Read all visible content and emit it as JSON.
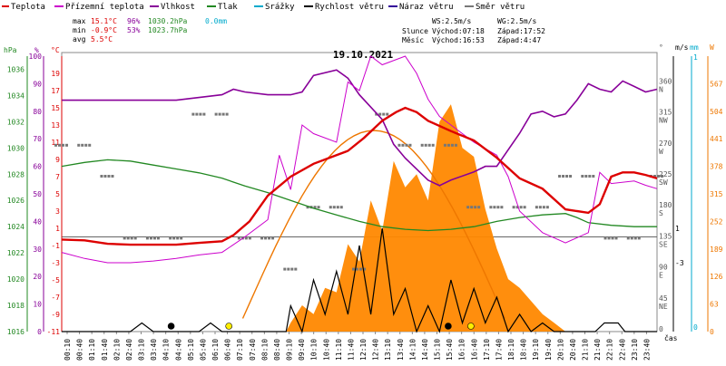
{
  "chart_data": {
    "type": "line",
    "title": "19.10.2021",
    "legend": [
      {
        "label": "Teplota",
        "color": "#dd0000"
      },
      {
        "label": "Přízemní teplota",
        "color": "#cc00cc"
      },
      {
        "label": "Vlhkost",
        "color": "#880099"
      },
      {
        "label": "Tlak",
        "color": "#228822"
      },
      {
        "label": "Srážky",
        "color": "#00aacc"
      },
      {
        "label": "Rychlost větru",
        "color": "#000000"
      },
      {
        "label": "Náraz větru",
        "color": "#330099"
      },
      {
        "label": "Směr větru",
        "color": "#777777"
      }
    ],
    "stats": {
      "max": {
        "label": "max",
        "temp": "15.1°C",
        "hum": "96%",
        "press": "1030.2hPa",
        "rain": "0.0mm"
      },
      "min": {
        "label": "min",
        "temp": "-0.9°C",
        "hum": "53%",
        "press": "1023.7hPa"
      },
      "avg": {
        "label": "avg",
        "temp": "5.5°C"
      }
    },
    "wind_info": {
      "ws": "WS:2.5m/s",
      "wg": "WG:2.5m/s"
    },
    "sun_info": {
      "label": "Slunce",
      "rise": "Východ:07:18",
      "set": "Západ:17:52"
    },
    "moon_info": {
      "label": "Měsíc",
      "rise": "Východ:16:53",
      "set": "Západ:4:47"
    },
    "axis_units": {
      "hpa": "hPa",
      "pct": "%",
      "c": "°C",
      "deg": "°",
      "ms": "m/s",
      "mm": "mm",
      "wm2": "W",
      "time": "čas"
    },
    "x_ticks": [
      "00:10",
      "00:40",
      "01:10",
      "01:40",
      "02:10",
      "02:40",
      "03:10",
      "03:40",
      "04:10",
      "04:40",
      "05:10",
      "05:40",
      "06:10",
      "06:40",
      "07:10",
      "07:40",
      "08:10",
      "08:40",
      "09:10",
      "09:40",
      "10:10",
      "10:40",
      "11:10",
      "11:40",
      "12:10",
      "12:40",
      "13:10",
      "13:40",
      "14:10",
      "14:40",
      "15:10",
      "15:40",
      "16:10",
      "16:40",
      "17:10",
      "17:40",
      "18:10",
      "18:40",
      "19:10",
      "19:40",
      "20:10",
      "20:40",
      "21:10",
      "21:40",
      "22:10",
      "22:40",
      "23:10",
      "23:40"
    ],
    "y_ticks": {
      "pressure_hpa": [
        "1036",
        "1034",
        "1032",
        "1030",
        "1028",
        "1026",
        "1024",
        "1022",
        "1020",
        "1018",
        "1016"
      ],
      "humidity_pct": [
        "100",
        "90",
        "80",
        "70",
        "60",
        "50",
        "40",
        "30",
        "20",
        "10",
        "0"
      ],
      "temperature_c": [
        "19",
        "17",
        "15",
        "13",
        "11",
        "9",
        "7",
        "5",
        "3",
        "1",
        "-1",
        "-3",
        "-5",
        "-7",
        "-9",
        "-11"
      ],
      "direction_deg": [
        {
          "v": "360",
          "d": "N"
        },
        {
          "v": "315",
          "d": "NW"
        },
        {
          "v": "270",
          "d": "W"
        },
        {
          "v": "225",
          "d": "SW"
        },
        {
          "v": "180",
          "d": "S"
        },
        {
          "v": "135",
          "d": "SE"
        },
        {
          "v": "90",
          "d": "E"
        },
        {
          "v": "45",
          "d": "NE"
        },
        {
          "v": "0",
          "d": ""
        }
      ],
      "wind_ms": [
        "1",
        "-3"
      ],
      "rain_mm": [
        "1",
        "0"
      ],
      "solar_wm2": [
        "567",
        "504",
        "441",
        "378",
        "315",
        "252",
        "189",
        "126",
        "63",
        "0"
      ]
    },
    "temperature_c": [
      [
        0,
        -0.3
      ],
      [
        1,
        -0.4
      ],
      [
        2,
        -0.8
      ],
      [
        3,
        -0.9
      ],
      [
        4,
        -0.9
      ],
      [
        5,
        -0.9
      ],
      [
        6,
        -0.7
      ],
      [
        7,
        -0.5
      ],
      [
        7.5,
        0.2
      ],
      [
        8.2,
        1.8
      ],
      [
        9,
        4.8
      ],
      [
        10,
        7
      ],
      [
        11,
        8.5
      ],
      [
        12,
        9.5
      ],
      [
        12.5,
        10
      ],
      [
        13.2,
        11.5
      ],
      [
        14,
        13.5
      ],
      [
        14.6,
        14.5
      ],
      [
        15,
        15
      ],
      [
        15.5,
        14.5
      ],
      [
        16,
        13.5
      ],
      [
        17,
        12.3
      ],
      [
        18,
        11.2
      ],
      [
        19,
        9.2
      ],
      [
        20,
        6.8
      ],
      [
        21,
        5.6
      ],
      [
        22,
        3.2
      ],
      [
        23,
        2.8
      ],
      [
        23.5,
        3.8
      ],
      [
        24,
        7
      ],
      [
        24.5,
        7.5
      ],
      [
        25,
        7.5
      ],
      [
        25.5,
        7.2
      ],
      [
        26,
        6.8
      ]
    ],
    "surface_temp_c": [
      [
        0,
        -1.8
      ],
      [
        1,
        -2.5
      ],
      [
        2,
        -3
      ],
      [
        3,
        -3
      ],
      [
        4,
        -2.8
      ],
      [
        5,
        -2.5
      ],
      [
        6,
        -2.1
      ],
      [
        7,
        -1.8
      ],
      [
        8,
        0
      ],
      [
        9,
        2
      ],
      [
        9.5,
        9.5
      ],
      [
        10,
        5.5
      ],
      [
        10.5,
        13
      ],
      [
        11,
        12
      ],
      [
        12,
        11
      ],
      [
        12.5,
        18
      ],
      [
        13,
        17
      ],
      [
        13.5,
        21
      ],
      [
        14,
        20
      ],
      [
        15,
        21
      ],
      [
        15.5,
        19
      ],
      [
        16,
        16
      ],
      [
        16.5,
        14
      ],
      [
        17,
        13
      ],
      [
        18,
        11
      ],
      [
        19,
        9.5
      ],
      [
        19.5,
        7
      ],
      [
        20,
        3
      ],
      [
        21,
        0.5
      ],
      [
        22,
        -0.7
      ],
      [
        23,
        0.5
      ],
      [
        23.5,
        7.5
      ],
      [
        24,
        6.2
      ],
      [
        25,
        6.5
      ],
      [
        25.5,
        6
      ],
      [
        26,
        5.6
      ]
    ],
    "humidity_pct": [
      [
        0,
        84
      ],
      [
        1,
        84
      ],
      [
        2,
        84
      ],
      [
        3,
        84
      ],
      [
        4,
        84
      ],
      [
        5,
        84
      ],
      [
        6,
        85
      ],
      [
        7,
        86
      ],
      [
        7.5,
        88
      ],
      [
        8,
        87
      ],
      [
        9,
        86
      ],
      [
        10,
        86
      ],
      [
        10.5,
        87
      ],
      [
        11,
        93
      ],
      [
        12,
        95
      ],
      [
        12.5,
        92
      ],
      [
        13,
        86
      ],
      [
        14,
        77
      ],
      [
        14.5,
        68
      ],
      [
        15,
        63
      ],
      [
        16,
        55
      ],
      [
        16.5,
        53
      ],
      [
        17,
        55
      ],
      [
        18,
        58
      ],
      [
        18.5,
        60
      ],
      [
        19,
        60
      ],
      [
        20,
        72
      ],
      [
        20.5,
        79
      ],
      [
        21,
        80
      ],
      [
        21.5,
        78
      ],
      [
        22,
        79
      ],
      [
        22.5,
        84
      ],
      [
        23,
        90
      ],
      [
        23.5,
        88
      ],
      [
        24,
        87
      ],
      [
        24.5,
        91
      ],
      [
        25,
        89
      ],
      [
        25.5,
        87
      ],
      [
        26,
        88
      ]
    ],
    "pressure_hpa": [
      [
        0,
        1028.6
      ],
      [
        1,
        1028.9
      ],
      [
        2,
        1029.1
      ],
      [
        3,
        1029.0
      ],
      [
        4,
        1028.7
      ],
      [
        5,
        1028.4
      ],
      [
        6,
        1028.1
      ],
      [
        7,
        1027.7
      ],
      [
        7.5,
        1027.4
      ],
      [
        8,
        1027.1
      ],
      [
        9,
        1026.6
      ],
      [
        10,
        1026.0
      ],
      [
        11,
        1025.4
      ],
      [
        12,
        1024.9
      ],
      [
        13,
        1024.4
      ],
      [
        14,
        1024.0
      ],
      [
        15,
        1023.8
      ],
      [
        16,
        1023.7
      ],
      [
        17,
        1023.8
      ],
      [
        18,
        1024.0
      ],
      [
        19,
        1024.4
      ],
      [
        20,
        1024.7
      ],
      [
        21,
        1024.9
      ],
      [
        22,
        1025.0
      ],
      [
        22.5,
        1024.7
      ],
      [
        23,
        1024.3
      ],
      [
        24,
        1024.1
      ],
      [
        25,
        1024.0
      ],
      [
        26,
        1024.0
      ]
    ],
    "wind_speed_ms": [
      [
        0,
        -11
      ],
      [
        3,
        -11
      ],
      [
        3.5,
        -10
      ],
      [
        4,
        -11
      ],
      [
        6,
        -11
      ],
      [
        6.5,
        -10
      ],
      [
        7,
        -11
      ],
      [
        9.8,
        -11
      ],
      [
        10,
        -8
      ],
      [
        10.5,
        -11
      ],
      [
        11,
        -5
      ],
      [
        11.5,
        -9
      ],
      [
        12,
        -4
      ],
      [
        12.5,
        -9
      ],
      [
        13,
        -1
      ],
      [
        13.5,
        -9
      ],
      [
        14,
        1
      ],
      [
        14.5,
        -9
      ],
      [
        15,
        -6
      ],
      [
        15.5,
        -11
      ],
      [
        16,
        -8
      ],
      [
        16.5,
        -11
      ],
      [
        17,
        -5
      ],
      [
        17.5,
        -10
      ],
      [
        18,
        -6
      ],
      [
        18.5,
        -10
      ],
      [
        19,
        -7
      ],
      [
        19.5,
        -11
      ],
      [
        20,
        -9
      ],
      [
        20.5,
        -11
      ],
      [
        21,
        -10
      ],
      [
        21.5,
        -11
      ],
      [
        23.3,
        -11
      ],
      [
        23.7,
        -10
      ],
      [
        24.3,
        -10
      ],
      [
        24.6,
        -11
      ],
      [
        26,
        -11
      ]
    ],
    "solar_wm2": [
      [
        0,
        0
      ],
      [
        9.8,
        0
      ],
      [
        10,
        20
      ],
      [
        10.5,
        60
      ],
      [
        11,
        40
      ],
      [
        11.5,
        100
      ],
      [
        12,
        90
      ],
      [
        12.5,
        200
      ],
      [
        13,
        160
      ],
      [
        13.5,
        300
      ],
      [
        14,
        230
      ],
      [
        14.5,
        390
      ],
      [
        15,
        330
      ],
      [
        15.5,
        360
      ],
      [
        16,
        300
      ],
      [
        16.5,
        480
      ],
      [
        17,
        520
      ],
      [
        17.5,
        420
      ],
      [
        18,
        400
      ],
      [
        18.5,
        280
      ],
      [
        19,
        190
      ],
      [
        19.5,
        120
      ],
      [
        20,
        100
      ],
      [
        20.5,
        70
      ],
      [
        21,
        40
      ],
      [
        21.5,
        20
      ],
      [
        22,
        0
      ],
      [
        26,
        0
      ]
    ],
    "wind_direction_deg": [
      [
        0,
        270
      ],
      [
        1,
        270
      ],
      [
        2,
        225
      ],
      [
        3,
        135
      ],
      [
        4,
        135
      ],
      [
        5,
        135
      ],
      [
        6,
        315
      ],
      [
        7,
        315
      ],
      [
        8,
        135
      ],
      [
        9,
        135
      ],
      [
        10,
        90
      ],
      [
        11,
        180
      ],
      [
        12,
        180
      ],
      [
        13,
        90
      ],
      [
        14,
        315
      ],
      [
        15,
        270
      ],
      [
        16,
        270
      ],
      [
        17,
        270
      ],
      [
        18,
        180
      ],
      [
        19,
        180
      ],
      [
        20,
        180
      ],
      [
        21,
        180
      ],
      [
        22,
        225
      ],
      [
        23,
        225
      ],
      [
        24,
        135
      ],
      [
        25,
        135
      ],
      [
        26,
        225
      ]
    ],
    "sun_path": {
      "rise": 7.3,
      "set": 17.87
    },
    "markers": [
      {
        "type": "moonset",
        "at": 4.78,
        "color": "#000000"
      },
      {
        "type": "sunrise",
        "at": 7.3,
        "color": "#ffee00"
      },
      {
        "type": "moonrise",
        "at": 16.88,
        "color": "#000000"
      },
      {
        "type": "sunset",
        "at": 17.87,
        "color": "#ffee00"
      }
    ],
    "x_range": [
      0,
      26
    ],
    "temp_range": [
      -11,
      21
    ],
    "humidity_range": [
      0,
      100
    ],
    "pressure_range": [
      1016,
      1037
    ],
    "wind_range": [
      -11,
      21
    ],
    "solar_range": [
      0,
      630
    ],
    "direction_range": [
      0,
      400
    ]
  }
}
